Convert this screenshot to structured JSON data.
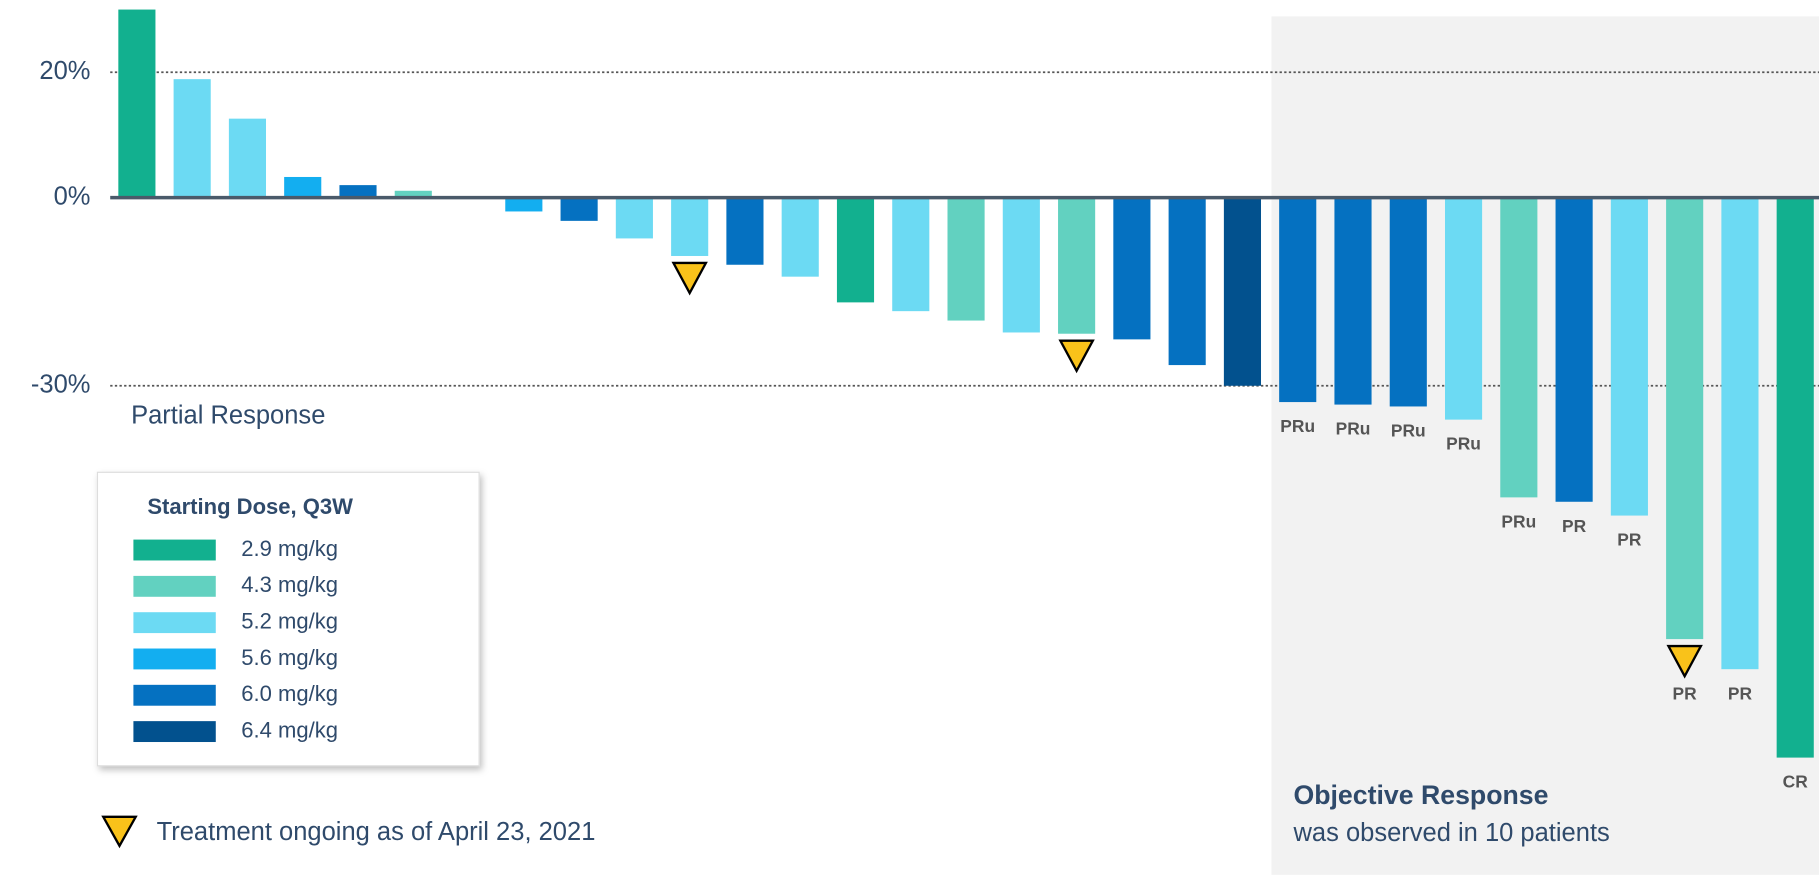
{
  "chart_data": {
    "type": "bar",
    "values": [
      30,
      18.9,
      12.6,
      3.3,
      2.0,
      1.1,
      null,
      -2.2,
      -3.7,
      -6.5,
      -9.3,
      -10.7,
      -12.6,
      -16.7,
      -18.1,
      -19.6,
      -21.5,
      -21.7,
      -22.6,
      -26.7,
      -30.0,
      -32.6,
      -33.0,
      -33.3,
      -35.4,
      -47.8,
      -48.5,
      -50.7,
      -70.4,
      -75.2,
      -89.3
    ],
    "bar_colors": [
      "#12b08f",
      "#6cdaf3",
      "#6cdaf3",
      "#13aef0",
      "#0571c1",
      "#62d1c0",
      null,
      "#13aef0",
      "#0571c1",
      "#6cdaf3",
      "#6cdaf3",
      "#0571c1",
      "#6cdaf3",
      "#12b08f",
      "#6cdaf3",
      "#62d1c0",
      "#6cdaf3",
      "#62d1c0",
      "#0571c1",
      "#0571c1",
      "#02518e",
      "#0571c1",
      "#0571c1",
      "#0571c1",
      "#6cdaf3",
      "#62d1c0",
      "#0571c1",
      "#6cdaf3",
      "#62d1c0",
      "#6cdaf3",
      "#12b08f"
    ],
    "response_labels": [
      null,
      null,
      null,
      null,
      null,
      null,
      null,
      null,
      null,
      null,
      null,
      null,
      null,
      null,
      null,
      null,
      null,
      null,
      null,
      null,
      null,
      "PRu",
      "PRu",
      "PRu",
      "PRu",
      "PRu",
      "PR",
      "PR",
      "PR",
      "PR",
      "CR"
    ],
    "ongoing": [
      false,
      false,
      false,
      false,
      false,
      false,
      false,
      false,
      false,
      false,
      true,
      false,
      false,
      false,
      false,
      false,
      false,
      true,
      false,
      false,
      false,
      false,
      false,
      false,
      false,
      false,
      false,
      false,
      true,
      false,
      false
    ],
    "ylim": [
      -108,
      31.5
    ],
    "yticks": [
      {
        "value": 20,
        "label": "20%"
      },
      {
        "value": 0,
        "label": "0%"
      },
      {
        "value": -30,
        "label": "-30%"
      }
    ],
    "threshold_label": "Partial Response",
    "legend": {
      "title": "Starting Dose, Q3W",
      "entries": [
        {
          "name": "2.9 mg/kg",
          "color": "#12b08f"
        },
        {
          "name": "4.3 mg/kg",
          "color": "#62d1c0"
        },
        {
          "name": "5.2 mg/kg",
          "color": "#6cdaf3"
        },
        {
          "name": "5.6 mg/kg",
          "color": "#13aef0"
        },
        {
          "name": "6.0 mg/kg",
          "color": "#0571c1"
        },
        {
          "name": "6.4 mg/kg",
          "color": "#02518e"
        }
      ]
    },
    "ongoing_note": "Treatment ongoing as of April 23, 2021",
    "region_title": "Objective Response",
    "region_subtitle": "was observed in 10 patients"
  }
}
